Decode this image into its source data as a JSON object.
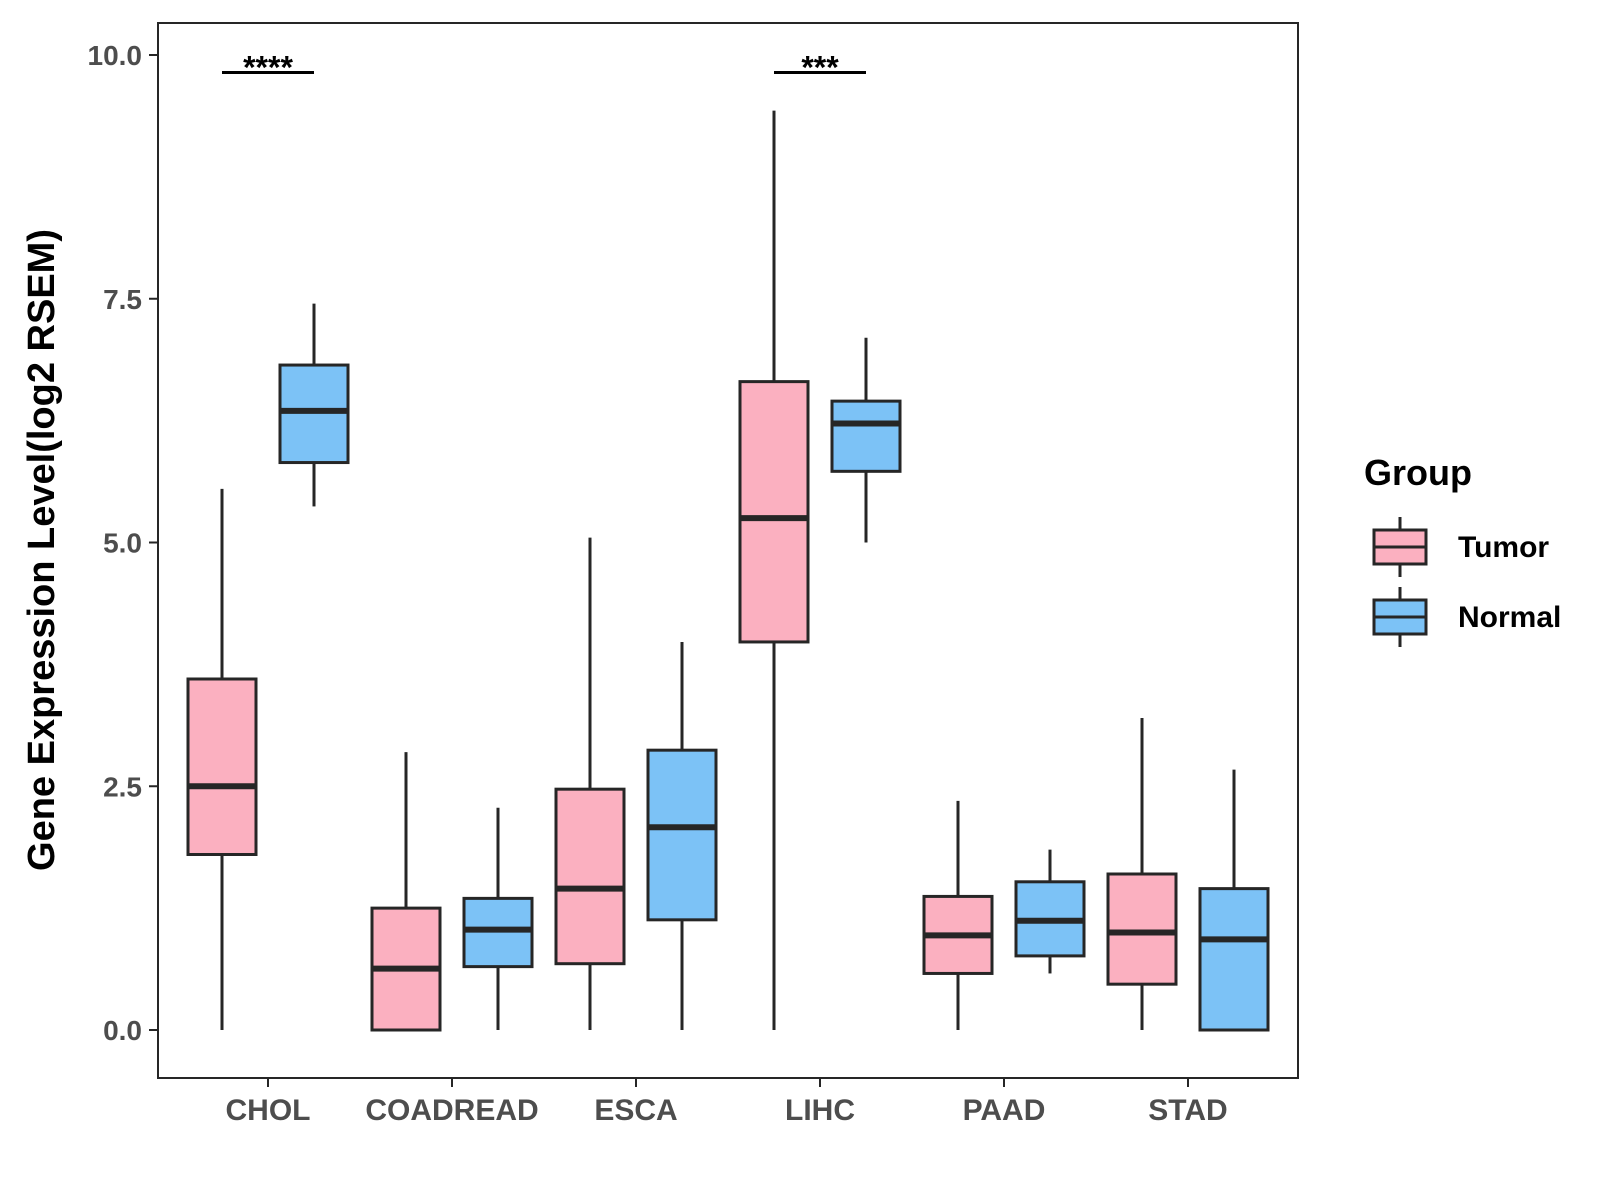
{
  "chart_data": {
    "type": "box",
    "title": "",
    "xlabel": "",
    "ylabel": "Gene Expression Level(log2 RSEM)",
    "ylim": [
      -0.48,
      10.32
    ],
    "yticks": [
      0.0,
      2.5,
      5.0,
      7.5,
      10.0
    ],
    "ytick_labels": [
      "0.0",
      "2.5",
      "5.0",
      "7.5",
      "10.0"
    ],
    "categories": [
      "CHOL",
      "COADREAD",
      "ESCA",
      "LIHC",
      "PAAD",
      "STAD"
    ],
    "legend": {
      "title": "Group",
      "position": "right",
      "entries": [
        "Tumor",
        "Normal"
      ]
    },
    "colors": {
      "Tumor": "#fbb0c0",
      "Normal": "#7cc2f6",
      "stroke": "#262626"
    },
    "series": [
      {
        "name": "Tumor",
        "boxes": [
          {
            "min": 0.0,
            "q1": 1.8,
            "median": 2.5,
            "q3": 3.6,
            "max": 5.55
          },
          {
            "min": 0.0,
            "q1": 0.0,
            "median": 0.63,
            "q3": 1.25,
            "max": 2.85
          },
          {
            "min": 0.0,
            "q1": 0.68,
            "median": 1.45,
            "q3": 2.47,
            "max": 5.05
          },
          {
            "min": 0.0,
            "q1": 3.98,
            "median": 5.25,
            "q3": 6.65,
            "max": 9.43
          },
          {
            "min": 0.0,
            "q1": 0.58,
            "median": 0.97,
            "q3": 1.37,
            "max": 2.35
          },
          {
            "min": 0.0,
            "q1": 0.47,
            "median": 1.0,
            "q3": 1.6,
            "max": 3.2
          }
        ]
      },
      {
        "name": "Normal",
        "boxes": [
          {
            "min": 5.37,
            "q1": 5.82,
            "median": 6.35,
            "q3": 6.82,
            "max": 7.45
          },
          {
            "min": 0.0,
            "q1": 0.65,
            "median": 1.03,
            "q3": 1.35,
            "max": 2.28
          },
          {
            "min": 0.0,
            "q1": 1.13,
            "median": 2.08,
            "q3": 2.87,
            "max": 3.98
          },
          {
            "min": 5.0,
            "q1": 5.73,
            "median": 6.22,
            "q3": 6.45,
            "max": 7.1
          },
          {
            "min": 0.58,
            "q1": 0.76,
            "median": 1.12,
            "q3": 1.52,
            "max": 1.85
          },
          {
            "min": 0.0,
            "q1": 0.0,
            "median": 0.93,
            "q3": 1.45,
            "max": 2.67
          }
        ]
      }
    ],
    "annotations": [
      {
        "category": "CHOL",
        "label": "****",
        "y": 9.82
      },
      {
        "category": "LIHC",
        "label": "***",
        "y": 9.82
      }
    ]
  }
}
